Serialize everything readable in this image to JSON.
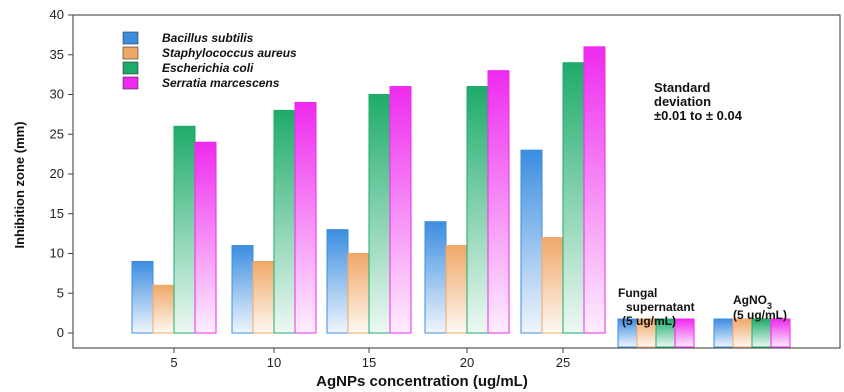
{
  "chart_data": {
    "type": "bar",
    "ylabel": "Inhibition zone (mm)",
    "xlabel": "AgNPs concentration (ug/mL)",
    "ylim": [
      0,
      40
    ],
    "yticks": [
      0,
      5,
      10,
      15,
      20,
      25,
      30,
      35,
      40
    ],
    "categories": [
      "5",
      "10",
      "15",
      "20",
      "25"
    ],
    "series": [
      {
        "name": "Bacillus subtilis",
        "color": "#3c8de0",
        "values": [
          9,
          11,
          13,
          14,
          23
        ]
      },
      {
        "name": "Staphylococcus aureus",
        "color": "#f0a868",
        "values": [
          6,
          9,
          10,
          11,
          12
        ]
      },
      {
        "name": "Escherichia coli",
        "color": "#1eab6a",
        "values": [
          26,
          28,
          30,
          31,
          34
        ]
      },
      {
        "name": "Serratia marcescens",
        "color": "#ee2aee",
        "values": [
          24,
          29,
          31,
          33,
          36
        ]
      }
    ],
    "controls": [
      {
        "label_lines": [
          "Fungal",
          "supernatant",
          "(5 ug/mL)"
        ],
        "values": [
          0,
          0,
          0,
          0
        ]
      },
      {
        "label_lines": [
          "AgNO",
          "(5 ug/mL)"
        ],
        "label_sub": "3",
        "values": [
          0,
          0,
          0,
          0
        ]
      }
    ],
    "annotation_lines": [
      "Standard",
      "deviation",
      "±0.01 to  ± 0.04"
    ],
    "legend_position": "top-left",
    "grid": false
  }
}
